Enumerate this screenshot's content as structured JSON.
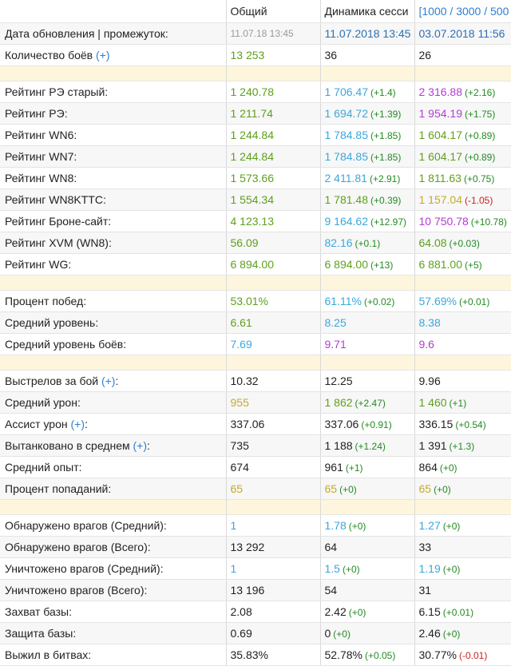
{
  "header": {
    "col_overall": "Общий",
    "col_session": "Динамика сесси",
    "col_ranges": "[1000 / 3000 / 500"
  },
  "colors": {
    "green": "#5e9f1c",
    "blue": "#3ba7dc",
    "purple": "#b43bd3",
    "gold": "#c6a92b",
    "grey": "#222222",
    "pos": "#238a23",
    "neg": "#cc2222"
  },
  "date_row": {
    "label": "Дата обновления | промежуток:",
    "overall": "11.07.18 13:45",
    "session": "11.07.2018 13:45",
    "ranges": "03.07.2018 11:56"
  },
  "battles_row": {
    "label": "Количество боёв ",
    "plus": "(+)",
    "c1": {
      "v": "13 253",
      "color": "green"
    },
    "c2": {
      "v": "36",
      "color": "grey"
    },
    "c3": {
      "v": "26",
      "color": "grey"
    }
  },
  "rows": [
    {
      "sep": true
    },
    {
      "label": "Рейтинг РЭ старый:",
      "c1": {
        "v": "1 240.78",
        "color": "green"
      },
      "c2": {
        "v": "1 706.47",
        "color": "blue",
        "d": "(+1.4)",
        "dc": "pos"
      },
      "c3": {
        "v": "2 316.88",
        "color": "purple",
        "d": "(+2.16)",
        "dc": "pos"
      }
    },
    {
      "label": "Рейтинг РЭ:",
      "c1": {
        "v": "1 211.74",
        "color": "green"
      },
      "c2": {
        "v": "1 694.72",
        "color": "blue",
        "d": "(+1.39)",
        "dc": "pos"
      },
      "c3": {
        "v": "1 954.19",
        "color": "purple",
        "d": "(+1.75)",
        "dc": "pos"
      }
    },
    {
      "label": "Рейтинг WN6:",
      "c1": {
        "v": "1 244.84",
        "color": "green"
      },
      "c2": {
        "v": "1 784.85",
        "color": "blue",
        "d": "(+1.85)",
        "dc": "pos"
      },
      "c3": {
        "v": "1 604.17",
        "color": "green",
        "d": "(+0.89)",
        "dc": "pos"
      }
    },
    {
      "label": "Рейтинг WN7:",
      "c1": {
        "v": "1 244.84",
        "color": "green"
      },
      "c2": {
        "v": "1 784.85",
        "color": "blue",
        "d": "(+1.85)",
        "dc": "pos"
      },
      "c3": {
        "v": "1 604.17",
        "color": "green",
        "d": "(+0.89)",
        "dc": "pos"
      }
    },
    {
      "label": "Рейтинг WN8:",
      "c1": {
        "v": "1 573.66",
        "color": "green"
      },
      "c2": {
        "v": "2 411.81",
        "color": "blue",
        "d": "(+2.91)",
        "dc": "pos"
      },
      "c3": {
        "v": "1 811.63",
        "color": "green",
        "d": "(+0.75)",
        "dc": "pos"
      }
    },
    {
      "label": "Рейтинг WN8KTTC:",
      "c1": {
        "v": "1 554.34",
        "color": "green"
      },
      "c2": {
        "v": "1 781.48",
        "color": "green",
        "d": "(+0.39)",
        "dc": "pos"
      },
      "c3": {
        "v": "1 157.04",
        "color": "gold",
        "d": "(-1.05)",
        "dc": "neg"
      }
    },
    {
      "label": "Рейтинг Броне-сайт:",
      "c1": {
        "v": "4 123.13",
        "color": "green"
      },
      "c2": {
        "v": "9 164.62",
        "color": "blue",
        "d": "(+12.97)",
        "dc": "pos"
      },
      "c3": {
        "v": "10 750.78",
        "color": "purple",
        "d": "(+10.78)",
        "dc": "pos"
      }
    },
    {
      "label": "Рейтинг XVM (WN8):",
      "c1": {
        "v": "56.09",
        "color": "green"
      },
      "c2": {
        "v": "82.16",
        "color": "blue",
        "d": "(+0.1)",
        "dc": "pos"
      },
      "c3": {
        "v": "64.08",
        "color": "green",
        "d": "(+0.03)",
        "dc": "pos"
      }
    },
    {
      "label": "Рейтинг WG:",
      "c1": {
        "v": "6 894.00",
        "color": "green"
      },
      "c2": {
        "v": "6 894.00",
        "color": "green",
        "d": "(+13)",
        "dc": "pos"
      },
      "c3": {
        "v": "6 881.00",
        "color": "green",
        "d": "(+5)",
        "dc": "pos"
      }
    },
    {
      "sep": true
    },
    {
      "label": "Процент побед:",
      "c1": {
        "v": "53.01%",
        "color": "green"
      },
      "c2": {
        "v": "61.11%",
        "color": "blue",
        "d": "(+0.02)",
        "dc": "pos"
      },
      "c3": {
        "v": "57.69%",
        "color": "blue",
        "d": "(+0.01)",
        "dc": "pos"
      }
    },
    {
      "label": "Средний уровень:",
      "c1": {
        "v": "6.61",
        "color": "green"
      },
      "c2": {
        "v": "8.25",
        "color": "blue"
      },
      "c3": {
        "v": "8.38",
        "color": "blue"
      }
    },
    {
      "label": "Средний уровень боёв:",
      "c1": {
        "v": "7.69",
        "color": "blue"
      },
      "c2": {
        "v": "9.71",
        "color": "purple"
      },
      "c3": {
        "v": "9.6",
        "color": "purple"
      }
    },
    {
      "sep": true
    },
    {
      "label": "Выстрелов за бой ",
      "plus": "(+)",
      "label_tail": ":",
      "c1": {
        "v": "10.32",
        "color": "grey"
      },
      "c2": {
        "v": "12.25",
        "color": "grey"
      },
      "c3": {
        "v": "9.96",
        "color": "grey"
      }
    },
    {
      "label": "Средний урон:",
      "c1": {
        "v": "955",
        "color": "gold"
      },
      "c2": {
        "v": "1 862",
        "color": "green",
        "d": "(+2.47)",
        "dc": "pos"
      },
      "c3": {
        "v": "1 460",
        "color": "green",
        "d": "(+1)",
        "dc": "pos"
      }
    },
    {
      "label": "Ассист урон ",
      "plus": "(+)",
      "label_tail": ":",
      "c1": {
        "v": "337.06",
        "color": "grey"
      },
      "c2": {
        "v": "337.06",
        "color": "grey",
        "d": "(+0.91)",
        "dc": "pos"
      },
      "c3": {
        "v": "336.15",
        "color": "grey",
        "d": "(+0.54)",
        "dc": "pos"
      }
    },
    {
      "label": "Вытанковано в среднем ",
      "plus": "(+)",
      "label_tail": ":",
      "c1": {
        "v": "735",
        "color": "grey"
      },
      "c2": {
        "v": "1 188",
        "color": "grey",
        "d": "(+1.24)",
        "dc": "pos"
      },
      "c3": {
        "v": "1 391",
        "color": "grey",
        "d": "(+1.3)",
        "dc": "pos"
      }
    },
    {
      "label": "Средний опыт:",
      "c1": {
        "v": "674",
        "color": "grey"
      },
      "c2": {
        "v": "961",
        "color": "grey",
        "d": "(+1)",
        "dc": "pos"
      },
      "c3": {
        "v": "864",
        "color": "grey",
        "d": "(+0)",
        "dc": "pos"
      }
    },
    {
      "label": "Процент попаданий:",
      "c1": {
        "v": "65",
        "color": "gold"
      },
      "c2": {
        "v": "65",
        "color": "gold",
        "d": "(+0)",
        "dc": "pos"
      },
      "c3": {
        "v": "65",
        "color": "gold",
        "d": "(+0)",
        "dc": "pos"
      }
    },
    {
      "sep": true
    },
    {
      "label": "Обнаружено врагов (Средний):",
      "c1": {
        "v": "1",
        "color": "blue"
      },
      "c2": {
        "v": "1.78",
        "color": "blue",
        "d": "(+0)",
        "dc": "pos"
      },
      "c3": {
        "v": "1.27",
        "color": "blue",
        "d": "(+0)",
        "dc": "pos"
      }
    },
    {
      "label": "Обнаружено врагов (Всего):",
      "c1": {
        "v": "13 292",
        "color": "grey"
      },
      "c2": {
        "v": "64",
        "color": "grey"
      },
      "c3": {
        "v": "33",
        "color": "grey"
      }
    },
    {
      "label": "Уничтожено врагов (Средний):",
      "c1": {
        "v": "1",
        "color": "blue"
      },
      "c2": {
        "v": "1.5",
        "color": "blue",
        "d": "(+0)",
        "dc": "pos"
      },
      "c3": {
        "v": "1.19",
        "color": "blue",
        "d": "(+0)",
        "dc": "pos"
      }
    },
    {
      "label": "Уничтожено врагов (Всего):",
      "c1": {
        "v": "13 196",
        "color": "grey"
      },
      "c2": {
        "v": "54",
        "color": "grey"
      },
      "c3": {
        "v": "31",
        "color": "grey"
      }
    },
    {
      "label": "Захват базы:",
      "c1": {
        "v": "2.08",
        "color": "grey"
      },
      "c2": {
        "v": "2.42",
        "color": "grey",
        "d": "(+0)",
        "dc": "pos"
      },
      "c3": {
        "v": "6.15",
        "color": "grey",
        "d": "(+0.01)",
        "dc": "pos"
      }
    },
    {
      "label": "Защита базы:",
      "c1": {
        "v": "0.69",
        "color": "grey"
      },
      "c2": {
        "v": "0",
        "color": "grey",
        "d": "(+0)",
        "dc": "pos"
      },
      "c3": {
        "v": "2.46",
        "color": "grey",
        "d": "(+0)",
        "dc": "pos"
      }
    },
    {
      "label": "Выжил в битвах:",
      "c1": {
        "v": "35.83%",
        "color": "grey"
      },
      "c2": {
        "v": "52.78%",
        "color": "grey",
        "d": "(+0.05)",
        "dc": "pos"
      },
      "c3": {
        "v": "30.77%",
        "color": "grey",
        "d": "(-0.01)",
        "dc": "neg"
      }
    }
  ]
}
